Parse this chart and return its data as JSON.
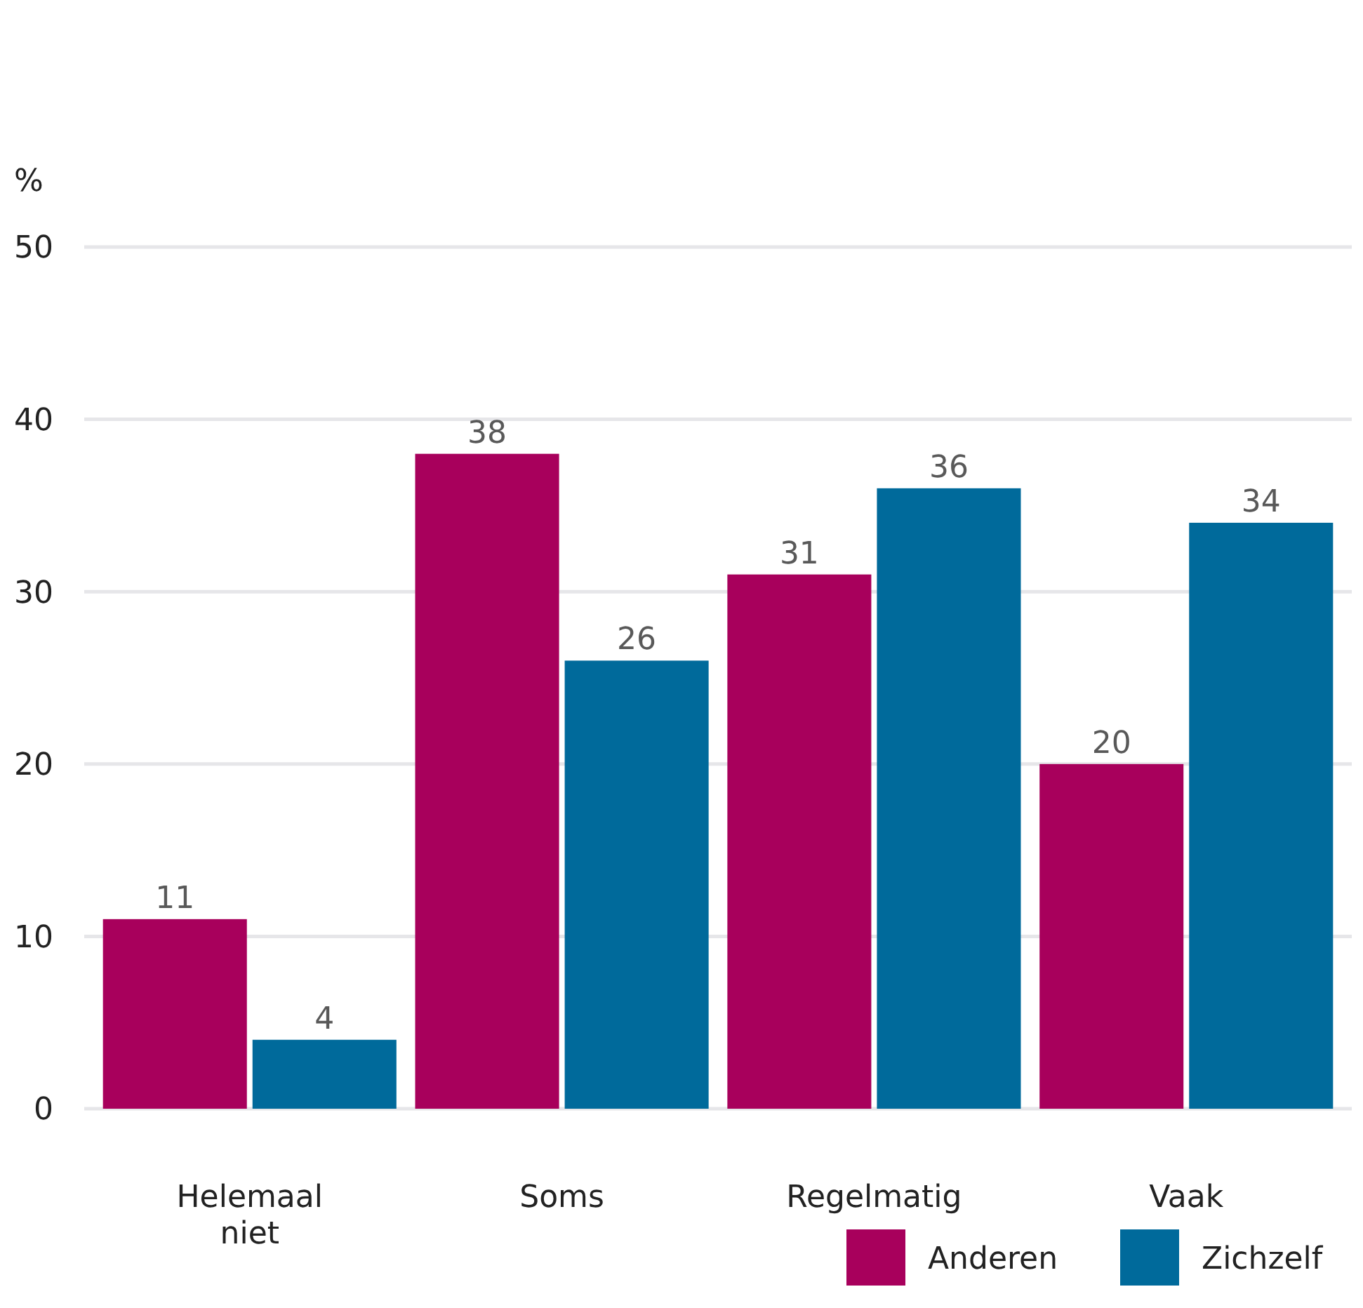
{
  "chart_data": {
    "type": "bar",
    "ylabel": "%",
    "categories": [
      "Helemaal niet",
      "Soms",
      "Regelmatig",
      "Vaak"
    ],
    "series": [
      {
        "name": "Anderen",
        "color": "#a8005c",
        "values": [
          11,
          38,
          31,
          20
        ]
      },
      {
        "name": "Zichzelf",
        "color": "#006a9b",
        "values": [
          4,
          26,
          36,
          34
        ]
      }
    ],
    "ylim": [
      0,
      50
    ],
    "yticks": [
      0,
      10,
      20,
      30,
      40,
      50
    ],
    "grid": "y",
    "data_labels": true,
    "legend": "bottom right"
  }
}
